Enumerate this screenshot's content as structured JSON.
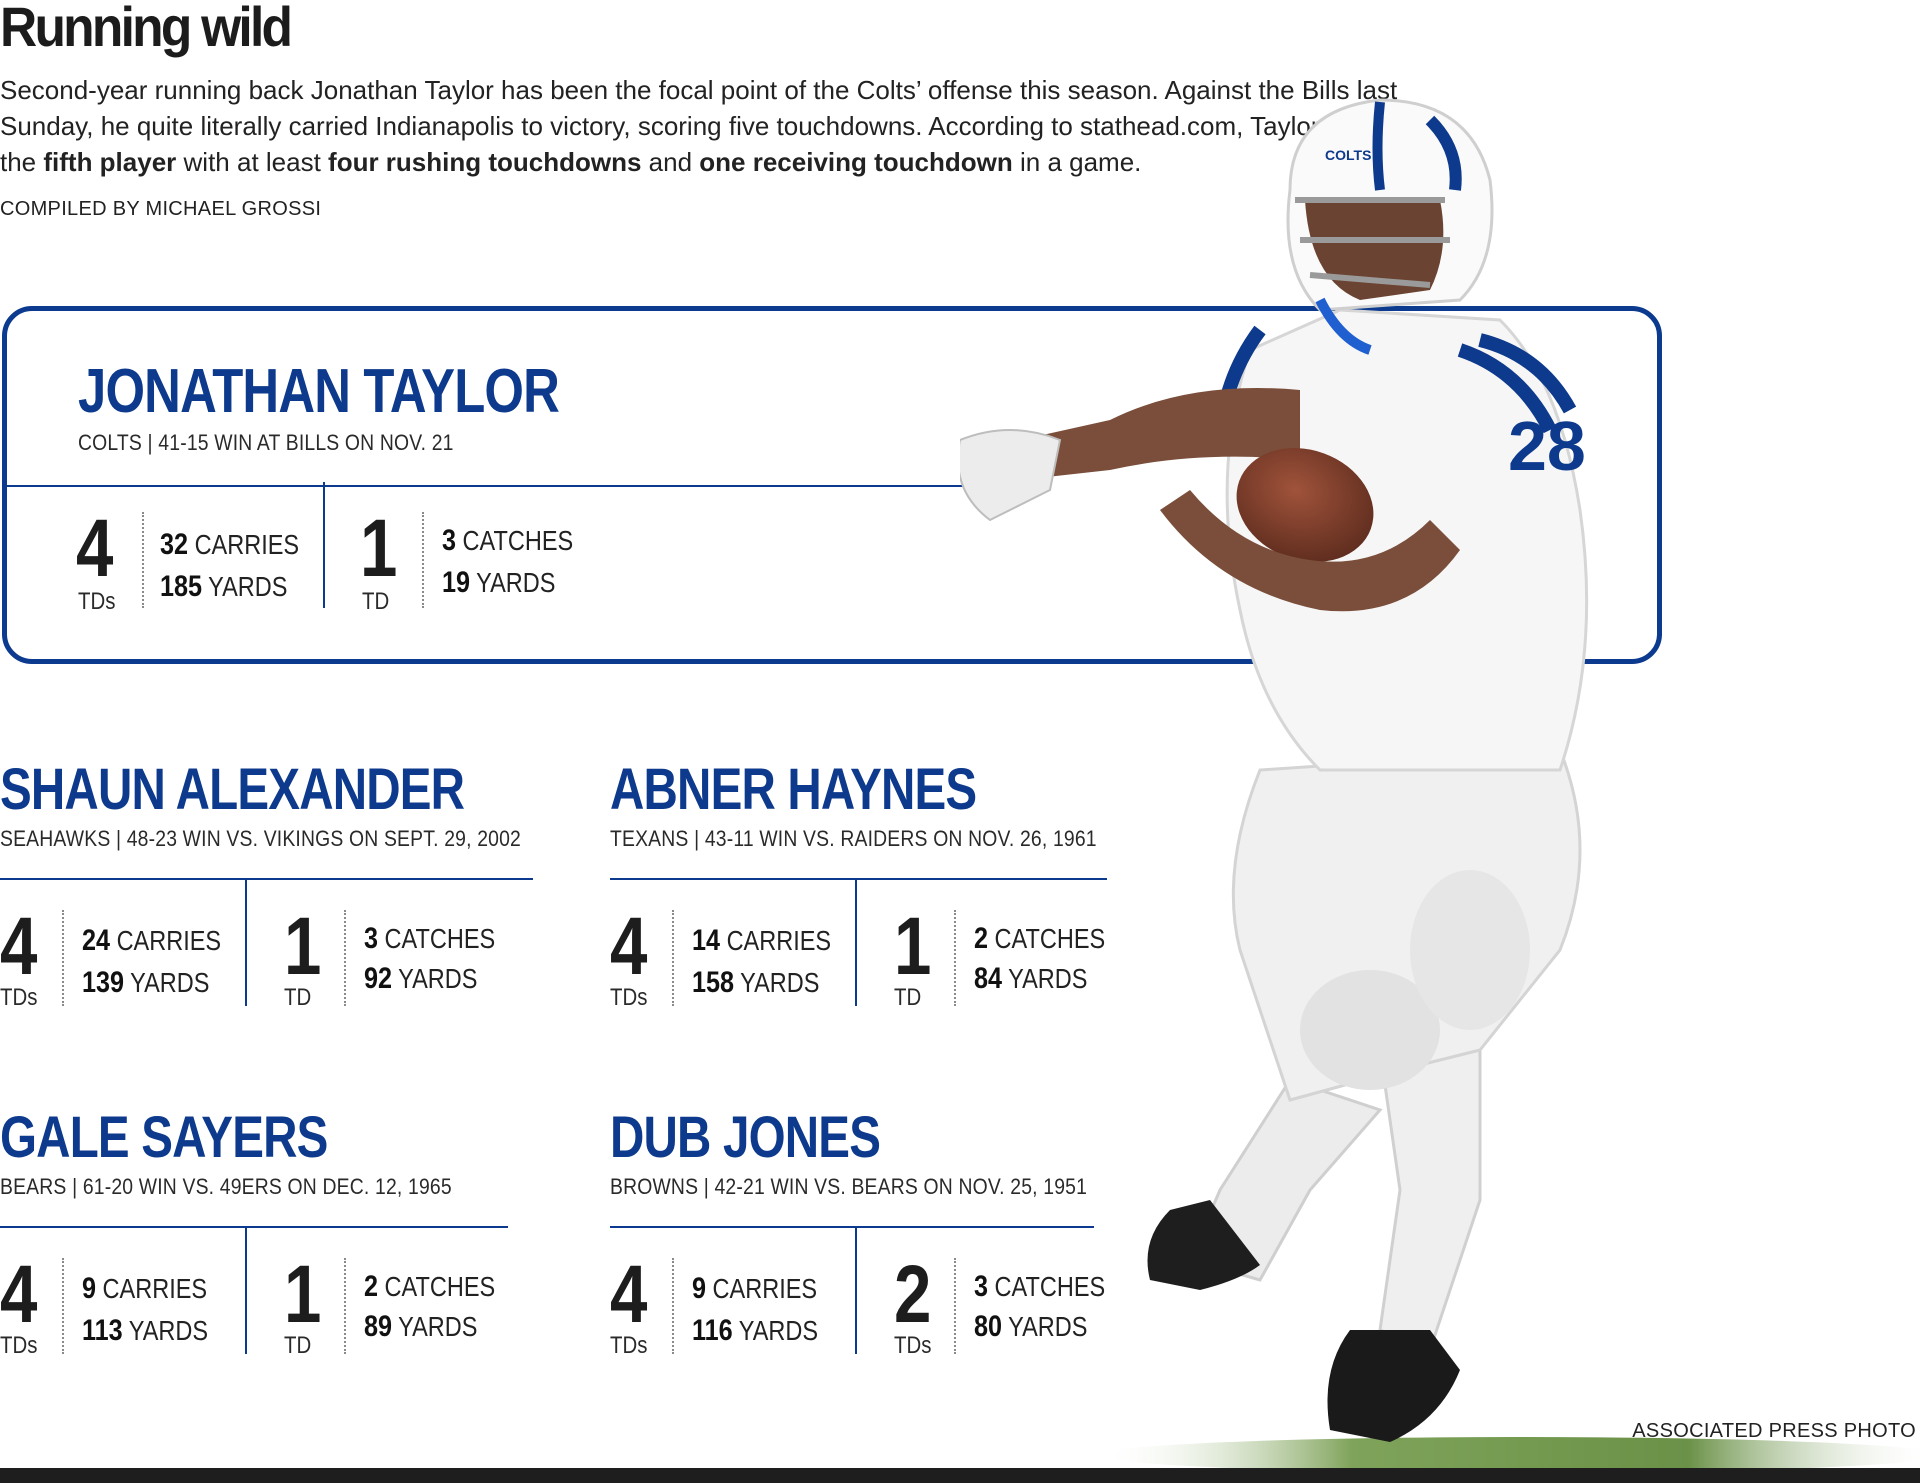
{
  "header": {
    "title": "Running wild",
    "intro_parts": [
      "Second-year running back Jonathan Taylor has been the focal point of the Colts’ offense this season. Against the Bills last Sunday, he quite literally carried Indianapolis to victory, scoring five touchdowns. According to stathead.com, Taylor became the ",
      "fifth player",
      " with at least ",
      "four rushing touchdowns",
      " and ",
      "one receiving touchdown",
      " in a game."
    ],
    "credit": "COMPILED BY MICHAEL GROSSI"
  },
  "featured": {
    "name": "JONATHAN TAYLOR",
    "meta": "COLTS | 41-15 WIN AT BILLS ON NOV. 21",
    "rush_td": "4",
    "rush_td_unit": "TDs",
    "carries": "32",
    "carries_label": "CARRIES",
    "rush_yards": "185",
    "rush_yards_label": "YARDS",
    "rec_td": "1",
    "rec_td_unit": "TD",
    "catches": "3",
    "catches_label": "CATCHES",
    "rec_yards": "19",
    "rec_yards_label": "YARDS"
  },
  "players": [
    {
      "name": "SHAUN ALEXANDER",
      "meta": "SEAHAWKS | 48-23 WIN VS. VIKINGS ON SEPT. 29, 2002",
      "rush_td": "4",
      "rush_td_unit": "TDs",
      "carries": "24",
      "carries_label": "CARRIES",
      "rush_yards": "139",
      "rush_yards_label": "YARDS",
      "rec_td": "1",
      "rec_td_unit": "TD",
      "catches": "3",
      "catches_label": "CATCHES",
      "rec_yards": "92",
      "rec_yards_label": "YARDS"
    },
    {
      "name": "ABNER HAYNES",
      "meta": "TEXANS | 43-11 WIN VS. RAIDERS ON NOV. 26, 1961",
      "rush_td": "4",
      "rush_td_unit": "TDs",
      "carries": "14",
      "carries_label": "CARRIES",
      "rush_yards": "158",
      "rush_yards_label": "YARDS",
      "rec_td": "1",
      "rec_td_unit": "TD",
      "catches": "2",
      "catches_label": "CATCHES",
      "rec_yards": "84",
      "rec_yards_label": "YARDS"
    },
    {
      "name": "GALE SAYERS",
      "meta": "BEARS | 61-20 WIN VS. 49ERS ON DEC. 12, 1965",
      "rush_td": "4",
      "rush_td_unit": "TDs",
      "carries": "9",
      "carries_label": "CARRIES",
      "rush_yards": "113",
      "rush_yards_label": "YARDS",
      "rec_td": "1",
      "rec_td_unit": "TD",
      "catches": "2",
      "catches_label": "CATCHES",
      "rec_yards": "89",
      "rec_yards_label": "YARDS"
    },
    {
      "name": "DUB JONES",
      "meta": "BROWNS | 42-21 WIN VS. BEARS ON NOV. 25, 1951",
      "rush_td": "4",
      "rush_td_unit": "TDs",
      "carries": "9",
      "carries_label": "CARRIES",
      "rush_yards": "116",
      "rush_yards_label": "YARDS",
      "rec_td": "2",
      "rec_td_unit": "TDs",
      "catches": "3",
      "catches_label": "CATCHES",
      "rec_yards": "80",
      "rec_yards_label": "YARDS"
    }
  ],
  "photo": {
    "jersey_number": "28",
    "helmet_text": "COLTS",
    "credit": "ASSOCIATED PRESS PHOTO"
  },
  "colors": {
    "accent_blue": "#0b3a8e",
    "text": "#1f1f1f",
    "background": "#ffffff"
  }
}
